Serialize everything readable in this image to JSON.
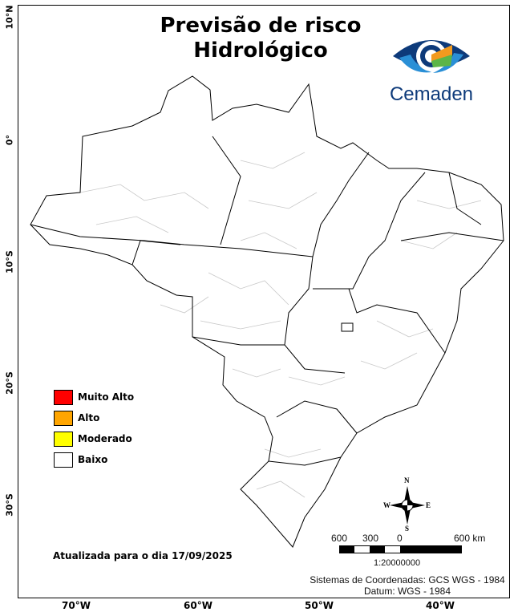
{
  "title_line1": "Previsão de risco",
  "title_line2": "Hidrológico",
  "logo": {
    "text": "Cemaden",
    "colors": [
      "#0d3a7a",
      "#2a8fd6",
      "#f29a1f",
      "#5cb547"
    ]
  },
  "legend": [
    {
      "label": "Muito Alto",
      "color": "#ff0000"
    },
    {
      "label": "Alto",
      "color": "#ffa500"
    },
    {
      "label": "Moderado",
      "color": "#ffff00"
    },
    {
      "label": "Baixo",
      "color": "#ffffff"
    }
  ],
  "latitude_labels": [
    "10°N",
    "0°",
    "10°S",
    "20°S",
    "30°S"
  ],
  "longitude_labels": [
    "70°W",
    "60°W",
    "50°W",
    "40°W"
  ],
  "compass": {
    "n": "N",
    "s": "S",
    "e": "E",
    "w": "W"
  },
  "scale_bar": {
    "labels": [
      "600",
      "300",
      "0",
      "600 km"
    ],
    "ratio": "1:20000000"
  },
  "updated_text": "Atualizada para o dia 17/09/2025",
  "crs_text": "Sistemas de Coordenadas: GCS WGS - 1984",
  "datum_text": "Datum: WGS - 1984",
  "all_regions_risk": "Baixo"
}
